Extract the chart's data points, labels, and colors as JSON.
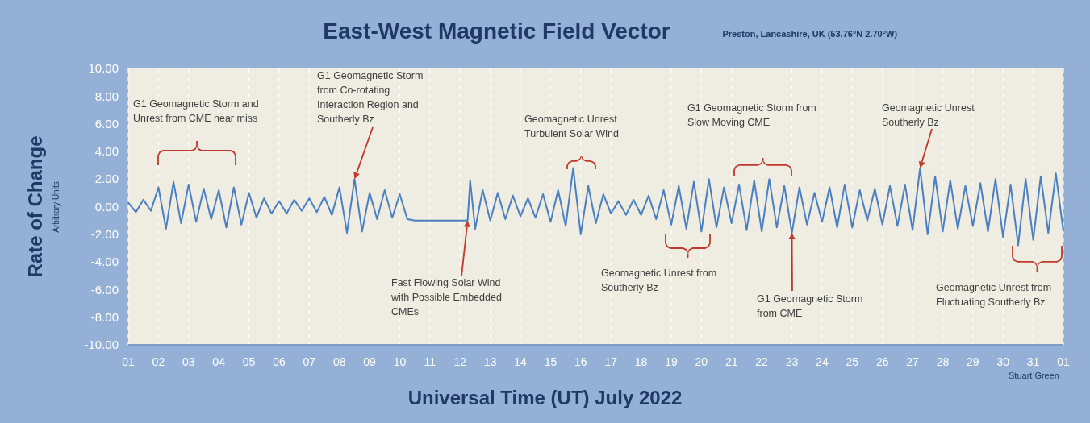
{
  "chart_data": {
    "type": "line",
    "title": "East-West Magnetic Field Vector",
    "subtitle": "Preston, Lancashire, UK  (53.76°N 2.70°W)",
    "xlabel": "Universal Time (UT) July 2022",
    "ylabel": "Rate of Change",
    "annotations": [
      "G1 Geomagnetic Storm and Unrest from CME near miss",
      {
        "text": "G1 Geomagnetic Storm from Co-rotating Interaction Region and Southerly Bz",
        "x": "2022-07-08T12:00",
        "y": 2.0
      },
      {
        "text": "Fast Flowing Solar Wind with Possible Embedded CMEs",
        "x": "2022-07-12T06:00",
        "y": -1.0
      },
      "Geomagnetic Unrest Turbulent Solar Wind",
      "Geomagnetic Unrest from Southerly Bz",
      "G1 Geomagnetic Storm from Slow Moving CME",
      {
        "text": "G1 Geomagnetic Storm from CME",
        "x": "2022-07-23T00:00",
        "y": -1.9
      },
      {
        "text": "Geomagnetic Unrest Southerly Bz",
        "x": "2022-07-27T06:00",
        "y": 2.8
      },
      "Geomagnetic Unrest from Fluctuating Southerly Bz",
      "Stuart Green",
      "Arbitrary Units"
    ],
    "series": [
      {
        "color": "#4a7fc1",
        "x": [
          "2022-07-01T00:00",
          "2022-07-01T06:00",
          "2022-07-01T12:00",
          "2022-07-01T18:00",
          "2022-07-02T00:00",
          "2022-07-02T06:00",
          "2022-07-02T12:00",
          "2022-07-02T18:00",
          "2022-07-03T00:00",
          "2022-07-03T06:00",
          "2022-07-03T12:00",
          "2022-07-03T18:00",
          "2022-07-04T00:00",
          "2022-07-04T06:00",
          "2022-07-04T12:00",
          "2022-07-04T18:00",
          "2022-07-05T00:00",
          "2022-07-05T06:00",
          "2022-07-05T12:00",
          "2022-07-05T18:00",
          "2022-07-06T00:00",
          "2022-07-06T06:00",
          "2022-07-06T12:00",
          "2022-07-06T18:00",
          "2022-07-07T00:00",
          "2022-07-07T06:00",
          "2022-07-07T12:00",
          "2022-07-07T18:00",
          "2022-07-08T00:00",
          "2022-07-08T06:00",
          "2022-07-08T12:00",
          "2022-07-08T18:00",
          "2022-07-09T00:00",
          "2022-07-09T06:00",
          "2022-07-09T12:00",
          "2022-07-09T18:00",
          "2022-07-10T00:00",
          "2022-07-10T06:00",
          "2022-07-10T12:00",
          "2022-07-12T06:00",
          "2022-07-12T08:00",
          "2022-07-12T12:00",
          "2022-07-12T18:00",
          "2022-07-13T00:00",
          "2022-07-13T06:00",
          "2022-07-13T12:00",
          "2022-07-13T18:00",
          "2022-07-14T00:00",
          "2022-07-14T06:00",
          "2022-07-14T12:00",
          "2022-07-14T18:00",
          "2022-07-15T00:00",
          "2022-07-15T06:00",
          "2022-07-15T12:00",
          "2022-07-15T18:00",
          "2022-07-16T00:00",
          "2022-07-16T06:00",
          "2022-07-16T12:00",
          "2022-07-16T18:00",
          "2022-07-17T00:00",
          "2022-07-17T06:00",
          "2022-07-17T12:00",
          "2022-07-17T18:00",
          "2022-07-18T00:00",
          "2022-07-18T06:00",
          "2022-07-18T12:00",
          "2022-07-18T18:00",
          "2022-07-19T00:00",
          "2022-07-19T06:00",
          "2022-07-19T12:00",
          "2022-07-19T18:00",
          "2022-07-20T00:00",
          "2022-07-20T06:00",
          "2022-07-20T12:00",
          "2022-07-20T18:00",
          "2022-07-21T00:00",
          "2022-07-21T06:00",
          "2022-07-21T12:00",
          "2022-07-21T18:00",
          "2022-07-22T00:00",
          "2022-07-22T06:00",
          "2022-07-22T12:00",
          "2022-07-22T18:00",
          "2022-07-23T00:00",
          "2022-07-23T06:00",
          "2022-07-23T12:00",
          "2022-07-23T18:00",
          "2022-07-24T00:00",
          "2022-07-24T06:00",
          "2022-07-24T12:00",
          "2022-07-24T18:00",
          "2022-07-25T00:00",
          "2022-07-25T06:00",
          "2022-07-25T12:00",
          "2022-07-25T18:00",
          "2022-07-26T00:00",
          "2022-07-26T06:00",
          "2022-07-26T12:00",
          "2022-07-26T18:00",
          "2022-07-27T00:00",
          "2022-07-27T06:00",
          "2022-07-27T12:00",
          "2022-07-27T18:00",
          "2022-07-28T00:00",
          "2022-07-28T06:00",
          "2022-07-28T12:00",
          "2022-07-28T18:00",
          "2022-07-29T00:00",
          "2022-07-29T06:00",
          "2022-07-29T12:00",
          "2022-07-29T18:00",
          "2022-07-30T00:00",
          "2022-07-30T06:00",
          "2022-07-30T12:00",
          "2022-07-30T18:00",
          "2022-07-31T00:00",
          "2022-07-31T06:00",
          "2022-07-31T12:00",
          "2022-07-31T18:00",
          "2022-08-01T00:00"
        ],
        "values": [
          0.3,
          -0.4,
          0.5,
          -0.3,
          1.4,
          -1.6,
          1.8,
          -1.2,
          1.6,
          -1.1,
          1.3,
          -0.9,
          1.2,
          -1.5,
          1.4,
          -1.3,
          1.0,
          -0.8,
          0.6,
          -0.5,
          0.4,
          -0.5,
          0.5,
          -0.3,
          0.6,
          -0.4,
          0.7,
          -0.6,
          1.4,
          -1.9,
          2.0,
          -1.8,
          1.0,
          -0.9,
          1.2,
          -0.8,
          0.9,
          -0.9,
          -1.0,
          -1.0,
          1.9,
          -1.6,
          1.2,
          -1.0,
          1.0,
          -0.9,
          0.8,
          -0.7,
          0.6,
          -0.8,
          0.9,
          -1.1,
          1.2,
          -1.4,
          2.8,
          -2.0,
          1.5,
          -1.2,
          0.9,
          -0.5,
          0.4,
          -0.6,
          0.5,
          -0.6,
          0.8,
          -0.9,
          1.2,
          -1.3,
          1.5,
          -1.6,
          1.8,
          -1.8,
          2.0,
          -1.5,
          1.4,
          -1.2,
          1.6,
          -1.7,
          1.9,
          -1.8,
          2.0,
          -1.5,
          1.5,
          -1.9,
          1.4,
          -1.3,
          1.0,
          -1.1,
          1.4,
          -1.5,
          1.6,
          -1.5,
          1.2,
          -1.0,
          1.3,
          -1.3,
          1.5,
          -1.4,
          1.6,
          -1.7,
          2.8,
          -2.0,
          2.2,
          -1.8,
          1.9,
          -1.6,
          1.5,
          -1.4,
          1.7,
          -1.8,
          2.0,
          -2.2,
          1.6,
          -2.8,
          2.0,
          -2.4,
          2.2,
          -1.9,
          2.4,
          -1.8
        ]
      }
    ],
    "xlim": [
      "2022-07-01",
      "2022-08-01"
    ],
    "xticks": [
      {
        "value": "2022-07-01",
        "label": "01"
      },
      {
        "value": "2022-07-02",
        "label": "02"
      },
      {
        "value": "2022-07-03",
        "label": "03"
      },
      {
        "value": "2022-07-04",
        "label": "04"
      },
      {
        "value": "2022-07-05",
        "label": "05"
      },
      {
        "value": "2022-07-06",
        "label": "06"
      },
      {
        "value": "2022-07-07",
        "label": "07"
      },
      {
        "value": "2022-07-08",
        "label": "08"
      },
      {
        "value": "2022-07-09",
        "label": "09"
      },
      {
        "value": "2022-07-10",
        "label": "10"
      },
      {
        "value": "2022-07-11",
        "label": "11"
      },
      {
        "value": "2022-07-12",
        "label": "12"
      },
      {
        "value": "2022-07-13",
        "label": "13"
      },
      {
        "value": "2022-07-14",
        "label": "14"
      },
      {
        "value": "2022-07-15",
        "label": "15"
      },
      {
        "value": "2022-07-16",
        "label": "16"
      },
      {
        "value": "2022-07-17",
        "label": "17"
      },
      {
        "value": "2022-07-18",
        "label": "18"
      },
      {
        "value": "2022-07-19",
        "label": "19"
      },
      {
        "value": "2022-07-20",
        "label": "20"
      },
      {
        "value": "2022-07-21",
        "label": "21"
      },
      {
        "value": "2022-07-22",
        "label": "22"
      },
      {
        "value": "2022-07-23",
        "label": "23"
      },
      {
        "value": "2022-07-24",
        "label": "24"
      },
      {
        "value": "2022-07-25",
        "label": "25"
      },
      {
        "value": "2022-07-26",
        "label": "26"
      },
      {
        "value": "2022-07-27",
        "label": "27"
      },
      {
        "value": "2022-07-28",
        "label": "28"
      },
      {
        "value": "2022-07-29",
        "label": "29"
      },
      {
        "value": "2022-07-30",
        "label": "30"
      },
      {
        "value": "2022-07-31",
        "label": "31"
      },
      {
        "value": "2022-08-01",
        "label": "01"
      }
    ],
    "ylim": [
      -10,
      10
    ],
    "yticks": [
      {
        "value": 10,
        "label": "10.00"
      },
      {
        "value": 8,
        "label": "8.00"
      },
      {
        "value": 6,
        "label": "6.00"
      },
      {
        "value": 4,
        "label": "4.00"
      },
      {
        "value": 2,
        "label": "2.00"
      },
      {
        "value": 0,
        "label": "0.00"
      },
      {
        "value": -2,
        "label": "-2.00"
      },
      {
        "value": -4,
        "label": "-4.00"
      },
      {
        "value": -6,
        "label": "-6.00"
      },
      {
        "value": -8,
        "label": "-8.00"
      },
      {
        "value": -10,
        "label": "-10.00"
      }
    ],
    "grid": "x",
    "marker": "none",
    "line_style": "solid"
  }
}
